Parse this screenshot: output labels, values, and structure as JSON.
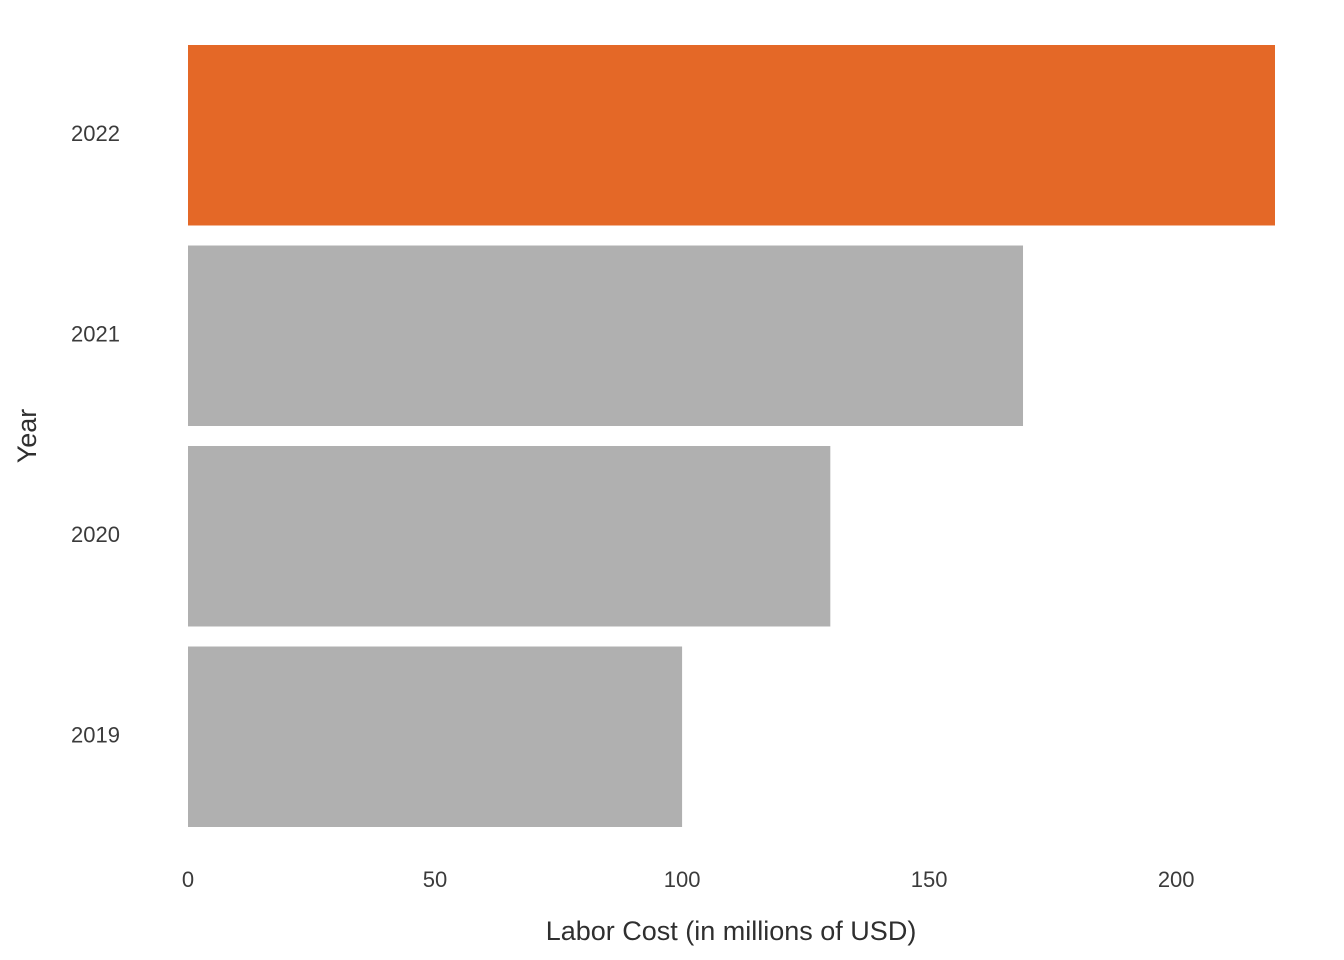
{
  "chart_data": {
    "type": "bar",
    "orientation": "horizontal",
    "categories": [
      "2019",
      "2020",
      "2021",
      "2022"
    ],
    "values": [
      100,
      130,
      169,
      220
    ],
    "highlight_category": "2022",
    "colors": {
      "default": "#b0b0b0",
      "highlight": "#e46827"
    },
    "xlabel": "Labor Cost (in millions of USD)",
    "ylabel": "Year",
    "xticks": [
      0,
      50,
      100,
      150,
      200
    ],
    "xlim": [
      0,
      220
    ],
    "grid": false,
    "legend": "none"
  }
}
